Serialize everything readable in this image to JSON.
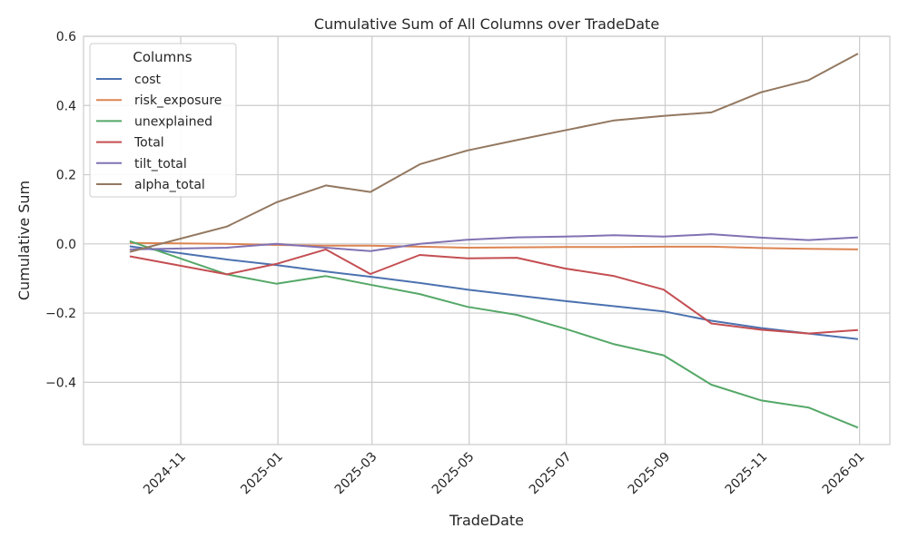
{
  "chart_data": {
    "type": "line",
    "title": "Cumulative Sum of All Columns over TradeDate",
    "xlabel": "TradeDate",
    "ylabel": "Cumulative Sum",
    "ylim": [
      -0.58,
      0.6
    ],
    "xlim": [
      "2024-09-01",
      "2026-01-20"
    ],
    "grid": true,
    "legend": {
      "title": "Columns",
      "placement": "top-left"
    },
    "yticks": [
      -0.4,
      -0.2,
      0.0,
      0.2,
      0.4,
      0.6
    ],
    "ytick_labels": [
      "−0.4",
      "−0.2",
      "0.0",
      "0.2",
      "0.4",
      "0.6"
    ],
    "xticks": [
      "2024-11-01",
      "2025-01-01",
      "2025-03-01",
      "2025-05-01",
      "2025-07-01",
      "2025-09-01",
      "2025-11-01",
      "2026-01-01"
    ],
    "xtick_labels": [
      "2024-11",
      "2025-01",
      "2025-03",
      "2025-05",
      "2025-07",
      "2025-09",
      "2025-11",
      "2026-01"
    ],
    "x": [
      "2024-09-30",
      "2024-11-30",
      "2024-12-31",
      "2025-01-31",
      "2025-02-28",
      "2025-03-31",
      "2025-04-30",
      "2025-05-31",
      "2025-06-30",
      "2025-07-31",
      "2025-08-31",
      "2025-09-30",
      "2025-10-31",
      "2025-11-30",
      "2025-12-31"
    ],
    "series": [
      {
        "name": "cost",
        "color": "#4c72b0",
        "values": [
          -0.007,
          -0.045,
          -0.061,
          -0.08,
          -0.095,
          -0.113,
          -0.132,
          -0.149,
          -0.165,
          -0.18,
          -0.195,
          -0.222,
          -0.243,
          -0.259,
          -0.275
        ]
      },
      {
        "name": "risk_exposure",
        "color": "#dd8452",
        "values": [
          0.003,
          0.0,
          -0.003,
          -0.005,
          -0.005,
          -0.008,
          -0.011,
          -0.01,
          -0.009,
          -0.009,
          -0.008,
          -0.008,
          -0.012,
          -0.014,
          -0.016
        ]
      },
      {
        "name": "unexplained",
        "color": "#55a868",
        "values": [
          0.008,
          -0.088,
          -0.115,
          -0.093,
          -0.118,
          -0.145,
          -0.182,
          -0.205,
          -0.245,
          -0.29,
          -0.322,
          -0.407,
          -0.452,
          -0.473,
          -0.531
        ]
      },
      {
        "name": "Total",
        "color": "#c44e52",
        "values": [
          -0.036,
          -0.088,
          -0.058,
          -0.016,
          -0.087,
          -0.032,
          -0.042,
          -0.04,
          -0.071,
          -0.093,
          -0.132,
          -0.23,
          -0.248,
          -0.259,
          -0.249
        ]
      },
      {
        "name": "tilt_total",
        "color": "#8172b3",
        "values": [
          -0.016,
          -0.011,
          0.0,
          -0.011,
          -0.021,
          0.0,
          0.012,
          0.019,
          0.021,
          0.025,
          0.021,
          0.028,
          0.018,
          0.011,
          0.019
        ]
      },
      {
        "name": "alpha_total",
        "color": "#937860",
        "values": [
          -0.023,
          0.05,
          0.12,
          0.169,
          0.15,
          0.23,
          0.27,
          0.3,
          0.328,
          0.357,
          0.37,
          0.38,
          0.438,
          0.473,
          0.55
        ]
      }
    ]
  }
}
